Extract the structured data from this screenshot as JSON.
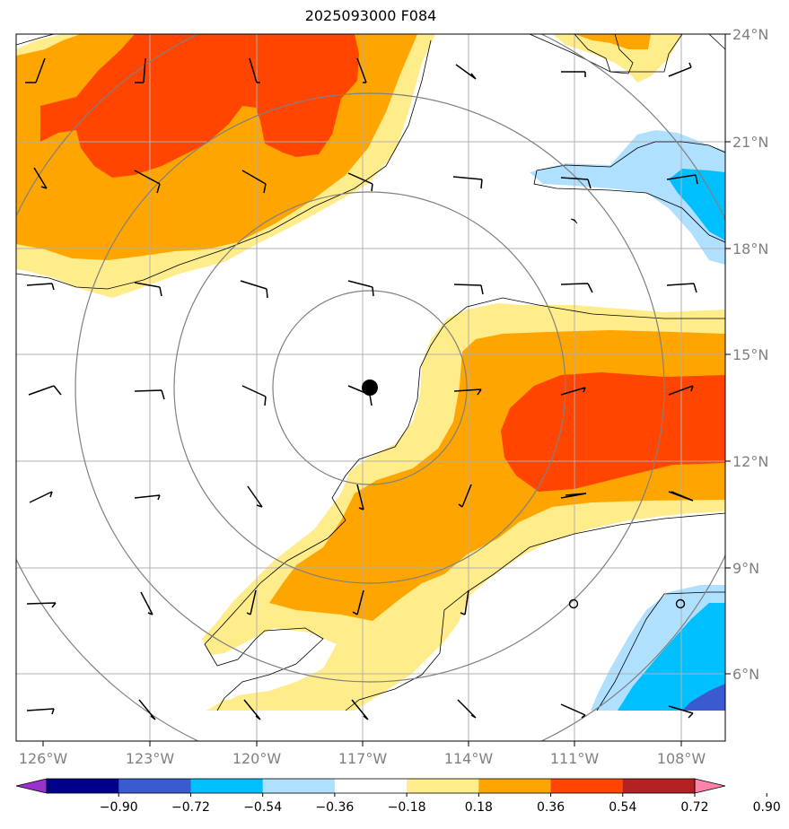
{
  "title": "2025093000 F084",
  "lon_labels": [
    "126°W",
    "123°W",
    "120°W",
    "117°W",
    "114°W",
    "111°W",
    "108°W"
  ],
  "lat_labels": [
    "24°N",
    "21°N",
    "18°N",
    "15°N",
    "12°N",
    "9°N",
    "6°N"
  ],
  "colorbar": {
    "tick_labels": [
      "−0.90",
      "−0.72",
      "−0.54",
      "−0.36",
      "−0.18",
      "0.18",
      "0.36",
      "0.54",
      "0.72",
      "0.90"
    ],
    "colors": [
      "#9932cc",
      "#00008b",
      "#3a5bcf",
      "#00bfff",
      "#b0e0ff",
      "#ffffff",
      "#ffec8b",
      "#ffa500",
      "#ff4500",
      "#b22222",
      "#ff82ab"
    ]
  },
  "fill_colors": {
    "light_yellow": "#ffec8b",
    "orange": "#ffa500",
    "red_orange": "#ff4500",
    "light_blue": "#b0e0ff",
    "deep_sky_blue": "#00bfff",
    "royal_blue": "#3a5bcf"
  },
  "storm_center": {
    "lon": -116.8,
    "lat": 14.1
  },
  "calm_markers": [
    {
      "lon": -111.0,
      "lat": 8.0
    },
    {
      "lon": -108.0,
      "lat": 8.0
    }
  ]
}
